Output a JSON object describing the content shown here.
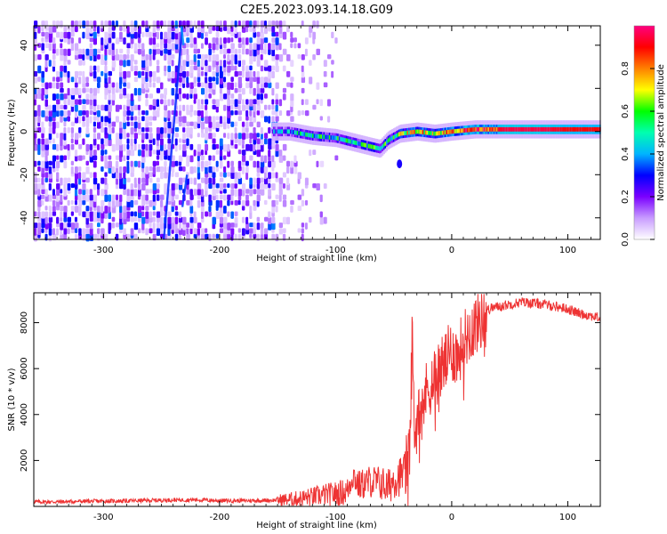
{
  "figure": {
    "title": "C2E5.2023.093.14.18.G09"
  },
  "chart_data": [
    {
      "type": "heatmap",
      "xlabel": "Height of straight line (km)",
      "ylabel": "Frequency (Hz)",
      "xlim": [
        -360,
        128
      ],
      "ylim": [
        -50,
        49
      ],
      "xticks": [
        -300,
        -200,
        -100,
        0,
        100
      ],
      "yticks": [
        -40,
        -20,
        0,
        20,
        40
      ],
      "colorbar": {
        "label": "Normalized spectral amplitude",
        "range": [
          0,
          1
        ],
        "ticks": [
          0.0,
          0.2,
          0.4,
          0.6,
          0.8
        ],
        "colormap": "rainbow",
        "colors": [
          "#ffffff",
          "#c89cff",
          "#7a00ff",
          "#0000ff",
          "#00b4ff",
          "#00ffb0",
          "#00ff00",
          "#ffff00",
          "#ff8000",
          "#ff0000",
          "#ff0080"
        ]
      },
      "features": {
        "noise_region_x": [
          -360,
          -150
        ],
        "sparse_region_x": [
          -150,
          -95
        ],
        "streak_x": [
          -248,
          -232
        ],
        "signal_ridge": [
          {
            "x": -155,
            "y": 0,
            "amp": 0.35
          },
          {
            "x": -140,
            "y": 0,
            "amp": 0.4
          },
          {
            "x": -120,
            "y": -2,
            "amp": 0.45
          },
          {
            "x": -100,
            "y": -3,
            "amp": 0.5
          },
          {
            "x": -85,
            "y": -5,
            "amp": 0.5
          },
          {
            "x": -70,
            "y": -7,
            "amp": 0.55
          },
          {
            "x": -62,
            "y": -8,
            "amp": 0.5
          },
          {
            "x": -55,
            "y": -4,
            "amp": 0.55
          },
          {
            "x": -45,
            "y": -1,
            "amp": 0.6
          },
          {
            "x": -30,
            "y": 0,
            "amp": 0.75
          },
          {
            "x": -15,
            "y": -1,
            "amp": 0.7
          },
          {
            "x": 0,
            "y": 0,
            "amp": 0.8
          },
          {
            "x": 20,
            "y": 1,
            "amp": 0.9
          },
          {
            "x": 50,
            "y": 1,
            "amp": 0.95
          },
          {
            "x": 80,
            "y": 1,
            "amp": 0.95
          },
          {
            "x": 100,
            "y": 1,
            "amp": 0.9
          },
          {
            "x": 128,
            "y": 1,
            "amp": 0.9
          }
        ]
      }
    },
    {
      "type": "line",
      "xlabel": "Height of straight line (km)",
      "ylabel": "SNR (10 * v/v)",
      "xlim": [
        -360,
        128
      ],
      "ylim": [
        0,
        9300
      ],
      "xticks": [
        -300,
        -200,
        -100,
        0,
        100
      ],
      "yticks": [
        2000,
        4000,
        6000,
        8000
      ],
      "color": "#ee3333",
      "series": [
        {
          "x": [
            -360,
            -340,
            -320,
            -300,
            -280,
            -260,
            -240,
            -220,
            -200,
            -180,
            -160,
            -140,
            -130,
            -120,
            -110,
            -100,
            -90,
            -85,
            -80,
            -70,
            -60,
            -55,
            -50,
            -45,
            -40,
            -36,
            -34,
            -32,
            -30,
            -28,
            -25,
            -20,
            -15,
            -10,
            -5,
            0,
            5,
            10,
            15,
            20,
            25,
            30,
            35,
            40,
            50,
            60,
            70,
            80,
            90,
            100,
            110,
            120,
            128
          ],
          "y": [
            200,
            200,
            220,
            230,
            240,
            260,
            280,
            290,
            250,
            250,
            260,
            300,
            350,
            420,
            500,
            550,
            650,
            1400,
            900,
            1100,
            1000,
            800,
            1200,
            1300,
            1500,
            2600,
            7400,
            3000,
            3800,
            5000,
            4600,
            5200,
            5600,
            6000,
            6300,
            6800,
            6500,
            7200,
            7600,
            7900,
            8200,
            8550,
            8650,
            8700,
            8800,
            8900,
            8850,
            8800,
            8700,
            8600,
            8400,
            8300,
            8200
          ]
        }
      ]
    }
  ]
}
